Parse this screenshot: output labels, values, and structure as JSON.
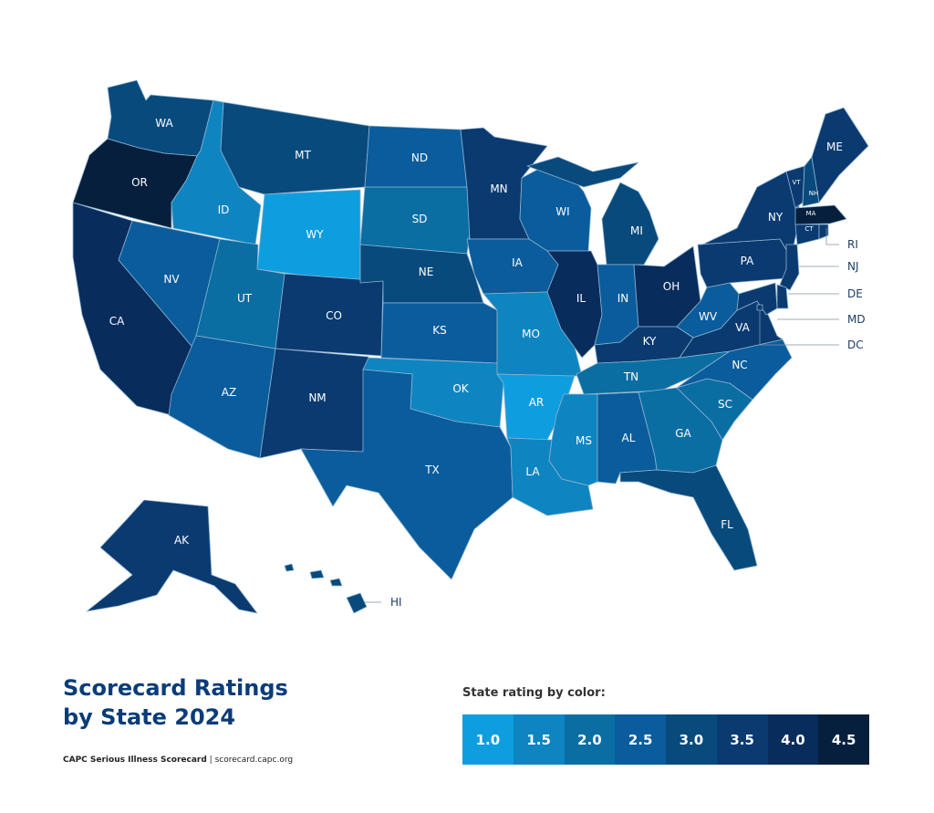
{
  "title_lines": [
    "Scorecard Ratings",
    "by State 2024"
  ],
  "source": {
    "name": "CAPC Serious Illness Scorecard",
    "separator": " | ",
    "url": "scorecard.capc.org"
  },
  "legend": {
    "title": "State rating by color:",
    "items": [
      {
        "label": "1.0",
        "color": "#0e9ee0"
      },
      {
        "label": "1.5",
        "color": "#0e85c0"
      },
      {
        "label": "2.0",
        "color": "#0a6ea3"
      },
      {
        "label": "2.5",
        "color": "#0a5c9c"
      },
      {
        "label": "3.0",
        "color": "#094a7d"
      },
      {
        "label": "3.5",
        "color": "#0a3a70"
      },
      {
        "label": "4.0",
        "color": "#082c5c"
      },
      {
        "label": "4.5",
        "color": "#061f3d"
      }
    ]
  },
  "states": [
    {
      "abbr": "WA",
      "rating": "3.0"
    },
    {
      "abbr": "OR",
      "rating": "4.5"
    },
    {
      "abbr": "CA",
      "rating": "4.0"
    },
    {
      "abbr": "ID",
      "rating": "1.5"
    },
    {
      "abbr": "NV",
      "rating": "2.5"
    },
    {
      "abbr": "MT",
      "rating": "3.0"
    },
    {
      "abbr": "WY",
      "rating": "1.0"
    },
    {
      "abbr": "UT",
      "rating": "2.0"
    },
    {
      "abbr": "AZ",
      "rating": "2.5"
    },
    {
      "abbr": "CO",
      "rating": "3.5"
    },
    {
      "abbr": "NM",
      "rating": "3.5"
    },
    {
      "abbr": "ND",
      "rating": "2.5"
    },
    {
      "abbr": "SD",
      "rating": "2.0"
    },
    {
      "abbr": "NE",
      "rating": "3.0"
    },
    {
      "abbr": "KS",
      "rating": "2.5"
    },
    {
      "abbr": "OK",
      "rating": "1.5"
    },
    {
      "abbr": "TX",
      "rating": "2.5"
    },
    {
      "abbr": "MN",
      "rating": "3.5"
    },
    {
      "abbr": "IA",
      "rating": "2.5"
    },
    {
      "abbr": "MO",
      "rating": "1.5"
    },
    {
      "abbr": "AR",
      "rating": "1.0"
    },
    {
      "abbr": "LA",
      "rating": "1.5"
    },
    {
      "abbr": "WI",
      "rating": "2.5"
    },
    {
      "abbr": "IL",
      "rating": "4.0"
    },
    {
      "abbr": "MI",
      "rating": "3.0"
    },
    {
      "abbr": "IN",
      "rating": "2.5"
    },
    {
      "abbr": "OH",
      "rating": "4.0"
    },
    {
      "abbr": "KY",
      "rating": "3.5"
    },
    {
      "abbr": "TN",
      "rating": "2.0"
    },
    {
      "abbr": "MS",
      "rating": "1.5"
    },
    {
      "abbr": "AL",
      "rating": "2.5"
    },
    {
      "abbr": "GA",
      "rating": "2.0"
    },
    {
      "abbr": "FL",
      "rating": "3.0"
    },
    {
      "abbr": "SC",
      "rating": "2.0"
    },
    {
      "abbr": "NC",
      "rating": "2.5"
    },
    {
      "abbr": "VA",
      "rating": "3.5"
    },
    {
      "abbr": "WV",
      "rating": "2.5"
    },
    {
      "abbr": "PA",
      "rating": "3.5"
    },
    {
      "abbr": "NY",
      "rating": "3.5"
    },
    {
      "abbr": "VT",
      "rating": "3.5"
    },
    {
      "abbr": "NH",
      "rating": "3.0"
    },
    {
      "abbr": "ME",
      "rating": "3.5"
    },
    {
      "abbr": "MA",
      "rating": "4.5"
    },
    {
      "abbr": "RI",
      "rating": "3.5"
    },
    {
      "abbr": "CT",
      "rating": "3.5"
    },
    {
      "abbr": "NJ",
      "rating": "3.5"
    },
    {
      "abbr": "DE",
      "rating": "3.5"
    },
    {
      "abbr": "MD",
      "rating": "3.5"
    },
    {
      "abbr": "DC",
      "rating": "3.5"
    },
    {
      "abbr": "AK",
      "rating": "3.5"
    },
    {
      "abbr": "HI",
      "rating": "3.0"
    }
  ]
}
